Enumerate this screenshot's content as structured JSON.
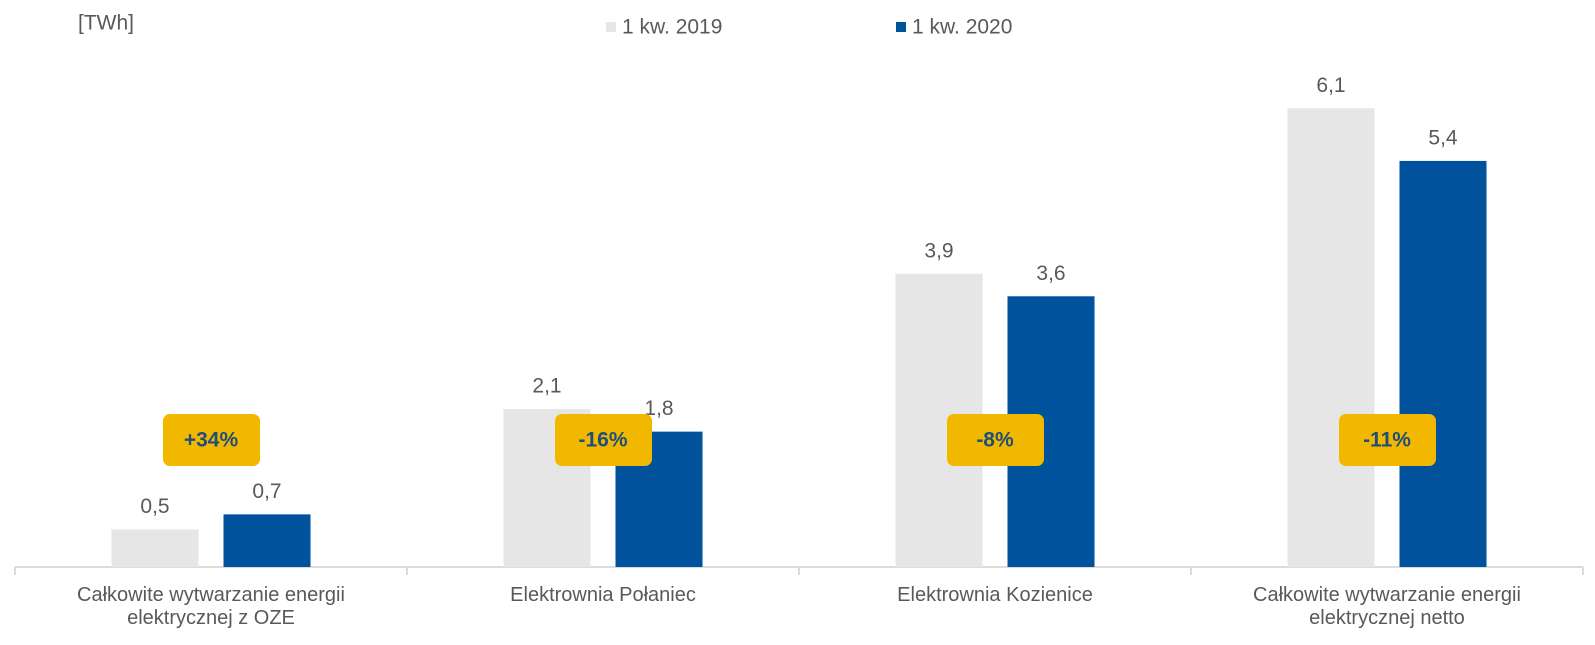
{
  "chart_data": {
    "type": "bar",
    "y_label": "[TWh]",
    "categories": [
      "Całkowite wytwarzanie energii elektrycznej z OZE",
      "Elektrownia Połaniec",
      "Elektrownia Kozienice",
      "Całkowite wytwarzanie energii elektrycznej netto"
    ],
    "series": [
      {
        "name": "1 kw. 2019",
        "color": "#e6e6e6",
        "values": [
          0.5,
          2.1,
          3.9,
          6.1
        ],
        "value_labels": [
          "0,5",
          "2,1",
          "3,9",
          "6,1"
        ]
      },
      {
        "name": "1 kw. 2020",
        "color": "#00529c",
        "values": [
          0.7,
          1.8,
          3.6,
          5.4
        ],
        "value_labels": [
          "0,7",
          "1,8",
          "3,6",
          "5,4"
        ]
      }
    ],
    "annotations": [
      "+34%",
      "-16%",
      "-8%",
      "-11%"
    ],
    "annotation_color": "#f2b800",
    "ylim": [
      0,
      7
    ]
  }
}
